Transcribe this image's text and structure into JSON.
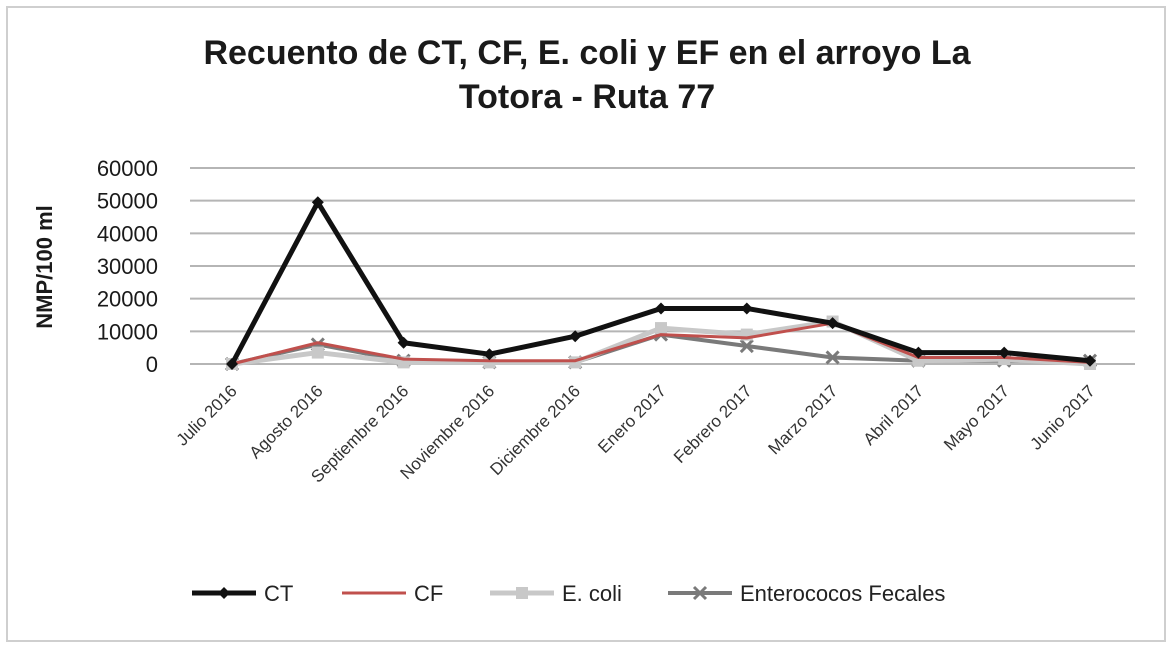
{
  "chart_data": {
    "type": "line",
    "title_line1": "Recuento de CT, CF, E. coli y EF en el arroyo La",
    "title_line2": "Totora - Ruta 77",
    "xlabel": "",
    "ylabel": "NMP/100 ml",
    "ylim": [
      0,
      60000
    ],
    "yticks": [
      0,
      10000,
      20000,
      30000,
      40000,
      50000,
      60000
    ],
    "grid": true,
    "legend_position": "bottom",
    "categories": [
      "Julio 2016",
      "Agosto 2016",
      "Septiembre 2016",
      "Noviembre 2016",
      "Diciembre 2016",
      "Enero 2017",
      "Febrero 2017",
      "Marzo 2017",
      "Abril 2017",
      "Mayo 2017",
      "Junio 2017"
    ],
    "series": [
      {
        "name": "CT",
        "color": "#111111",
        "values": [
          0,
          49500,
          6500,
          3000,
          8500,
          17000,
          17000,
          12500,
          3500,
          3500,
          1000
        ]
      },
      {
        "name": "CF",
        "color": "#c0504d",
        "values": [
          0,
          6500,
          1500,
          1000,
          1000,
          9000,
          8000,
          12500,
          2000,
          2000,
          500
        ]
      },
      {
        "name": "E. coli",
        "color": "#c8c8c8",
        "values": [
          0,
          3500,
          500,
          500,
          500,
          11000,
          9000,
          13000,
          1000,
          1500,
          0
        ]
      },
      {
        "name": "Enterococos Fecales",
        "color": "#7a7a7a",
        "values": [
          0,
          6000,
          1000,
          500,
          500,
          9000,
          5500,
          2000,
          1000,
          1000,
          1000
        ]
      }
    ]
  }
}
